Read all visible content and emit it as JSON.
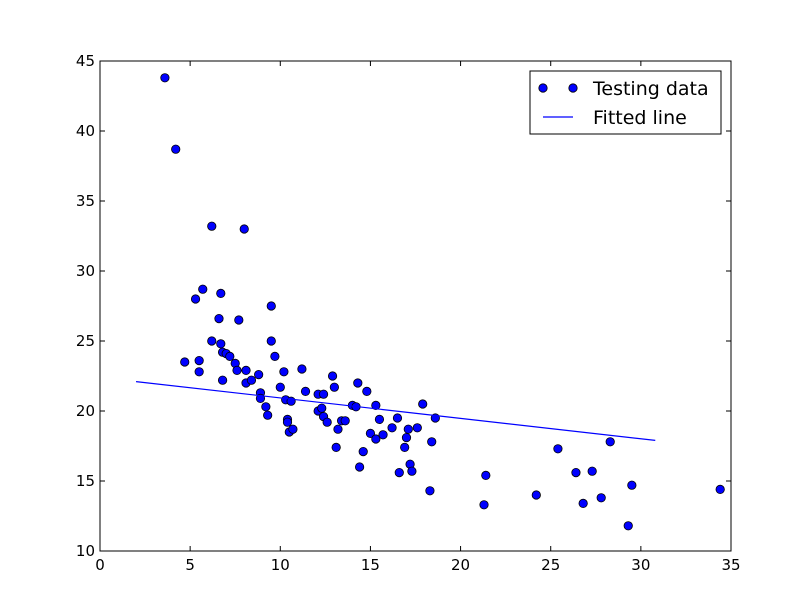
{
  "chart_data": {
    "type": "scatter",
    "title": "",
    "xlabel": "",
    "ylabel": "",
    "xlim": [
      0,
      35
    ],
    "ylim": [
      10,
      45
    ],
    "xticks": [
      0,
      5,
      10,
      15,
      20,
      25,
      30,
      35
    ],
    "yticks": [
      10,
      15,
      20,
      25,
      30,
      35,
      40,
      45
    ],
    "grid": false,
    "legend_position": "top-right",
    "series": [
      {
        "name": "Testing data",
        "kind": "scatter",
        "color": "#0000ff",
        "points": [
          [
            3.6,
            43.8
          ],
          [
            4.2,
            38.7
          ],
          [
            6.2,
            33.2
          ],
          [
            8.0,
            33.0
          ],
          [
            5.3,
            28.0
          ],
          [
            5.7,
            28.7
          ],
          [
            6.7,
            28.4
          ],
          [
            6.6,
            26.6
          ],
          [
            7.7,
            26.5
          ],
          [
            9.5,
            27.5
          ],
          [
            4.7,
            23.5
          ],
          [
            5.5,
            23.6
          ],
          [
            5.5,
            22.8
          ],
          [
            6.2,
            25.0
          ],
          [
            6.7,
            24.8
          ],
          [
            6.8,
            24.2
          ],
          [
            7.0,
            24.1
          ],
          [
            7.2,
            23.9
          ],
          [
            7.5,
            23.4
          ],
          [
            7.6,
            22.9
          ],
          [
            6.8,
            22.2
          ],
          [
            8.1,
            22.9
          ],
          [
            8.1,
            22.0
          ],
          [
            8.4,
            22.2
          ],
          [
            8.8,
            22.6
          ],
          [
            9.5,
            25.0
          ],
          [
            9.7,
            23.9
          ],
          [
            10.0,
            21.7
          ],
          [
            10.2,
            22.8
          ],
          [
            8.9,
            21.3
          ],
          [
            8.9,
            20.9
          ],
          [
            9.2,
            20.3
          ],
          [
            9.3,
            19.7
          ],
          [
            10.3,
            20.8
          ],
          [
            10.6,
            20.7
          ],
          [
            10.4,
            19.4
          ],
          [
            10.4,
            19.2
          ],
          [
            10.5,
            18.5
          ],
          [
            10.7,
            18.7
          ],
          [
            11.2,
            23.0
          ],
          [
            11.4,
            21.4
          ],
          [
            12.1,
            21.2
          ],
          [
            12.4,
            21.2
          ],
          [
            12.1,
            20.0
          ],
          [
            12.3,
            20.2
          ],
          [
            12.4,
            19.6
          ],
          [
            12.6,
            19.2
          ],
          [
            12.9,
            22.5
          ],
          [
            13.0,
            21.7
          ],
          [
            13.1,
            17.4
          ],
          [
            13.2,
            18.7
          ],
          [
            13.4,
            19.3
          ],
          [
            13.6,
            19.3
          ],
          [
            14.0,
            20.4
          ],
          [
            14.2,
            20.3
          ],
          [
            14.3,
            22.0
          ],
          [
            14.4,
            16.0
          ],
          [
            14.6,
            17.1
          ],
          [
            14.8,
            21.4
          ],
          [
            15.0,
            18.4
          ],
          [
            15.3,
            20.4
          ],
          [
            15.3,
            18.0
          ],
          [
            15.5,
            19.4
          ],
          [
            15.7,
            18.3
          ],
          [
            16.2,
            18.8
          ],
          [
            16.5,
            19.5
          ],
          [
            16.6,
            15.6
          ],
          [
            16.9,
            17.4
          ],
          [
            17.0,
            18.1
          ],
          [
            17.1,
            18.7
          ],
          [
            17.2,
            16.2
          ],
          [
            17.3,
            15.7
          ],
          [
            17.6,
            18.8
          ],
          [
            17.9,
            20.5
          ],
          [
            18.3,
            14.3
          ],
          [
            18.4,
            17.8
          ],
          [
            18.6,
            19.5
          ],
          [
            21.3,
            13.3
          ],
          [
            21.4,
            15.4
          ],
          [
            24.2,
            14.0
          ],
          [
            25.4,
            17.3
          ],
          [
            26.4,
            15.6
          ],
          [
            26.8,
            13.4
          ],
          [
            27.3,
            15.7
          ],
          [
            27.8,
            13.8
          ],
          [
            28.3,
            17.8
          ],
          [
            29.3,
            11.8
          ],
          [
            29.5,
            14.7
          ],
          [
            34.4,
            14.4
          ]
        ]
      },
      {
        "name": "Fitted line",
        "kind": "line",
        "color": "#0000ff",
        "points": [
          [
            2.0,
            22.1
          ],
          [
            30.8,
            17.9
          ]
        ]
      }
    ]
  }
}
